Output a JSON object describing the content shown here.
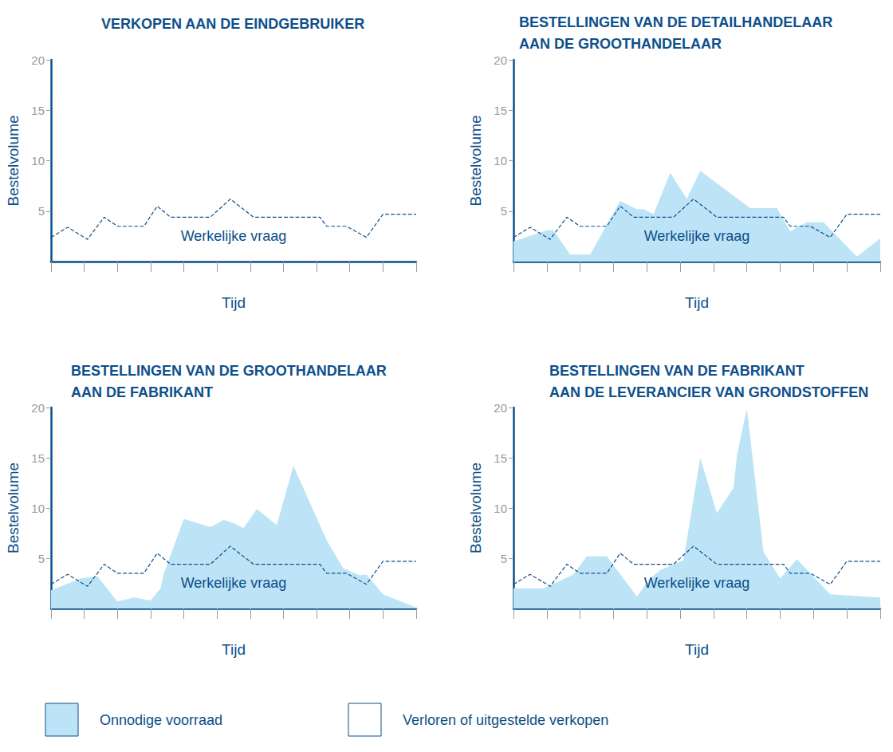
{
  "chart_data": [
    {
      "type": "line",
      "title": "VERKOPEN AAN DE EINDGEBRUIKER",
      "x_label": "Tijd",
      "y_label": "Bestelvolume",
      "xlim": [
        0,
        11
      ],
      "xticks": [
        0,
        1,
        2,
        3,
        4,
        5,
        6,
        7,
        8,
        9,
        10,
        11
      ],
      "ylim": [
        0,
        20
      ],
      "yticks": [
        5,
        10,
        15,
        20
      ],
      "tick_labels": "y",
      "grid": false,
      "series": [
        {
          "name": "Werkelijke vraag",
          "type": "line",
          "line_style": "dashed",
          "color": "#0d4f8b",
          "x": [
            0,
            0.5,
            1.1,
            1.6,
            2.0,
            2.8,
            3.2,
            3.6,
            4.8,
            5.4,
            6.1,
            8.1,
            8.3,
            8.9,
            9.5,
            10.0,
            11
          ],
          "values": [
            2.4,
            3.4,
            2.2,
            4.4,
            3.5,
            3.5,
            5.5,
            4.4,
            4.4,
            6.2,
            4.4,
            4.4,
            3.5,
            3.5,
            2.4,
            4.7,
            4.7
          ]
        }
      ]
    },
    {
      "type": "line",
      "title": "BESTELLINGEN VAN DE DETAILHANDELAAR\nAAN DE GROOTHANDELAAR",
      "x_label": "Tijd",
      "y_label": "Bestelvolume",
      "xlim": [
        0,
        11
      ],
      "xticks": [
        0,
        1,
        2,
        3,
        4,
        5,
        6,
        7,
        8,
        9,
        10,
        11
      ],
      "ylim": [
        0,
        20
      ],
      "yticks": [
        5,
        10,
        15,
        20
      ],
      "tick_labels": "y",
      "grid": false,
      "series": [
        {
          "name": "Onnodige voorraad",
          "type": "area",
          "color": "#bde4f6",
          "x": [
            0,
            1.0,
            1.2,
            1.7,
            2.3,
            3.2,
            3.7,
            3.9,
            4.2,
            4.7,
            5.2,
            5.6,
            7.1,
            7.9,
            8.3,
            8.8,
            9.3,
            10.3,
            11
          ],
          "values": [
            2.0,
            3.1,
            3.1,
            0.7,
            0.7,
            6.0,
            5.2,
            5.2,
            4.7,
            8.8,
            6.2,
            9.0,
            5.3,
            5.3,
            3.0,
            3.9,
            3.9,
            0.5,
            2.3
          ]
        },
        {
          "name": "Werkelijke vraag",
          "type": "line",
          "line_style": "dashed",
          "color": "#0d4f8b",
          "x": [
            0,
            0.5,
            1.1,
            1.6,
            2.0,
            2.8,
            3.2,
            3.6,
            4.8,
            5.4,
            6.1,
            8.1,
            8.3,
            8.9,
            9.5,
            10.0,
            11
          ],
          "values": [
            2.4,
            3.4,
            2.2,
            4.4,
            3.5,
            3.5,
            5.5,
            4.4,
            4.4,
            6.2,
            4.4,
            4.4,
            3.5,
            3.5,
            2.4,
            4.7,
            4.7
          ]
        }
      ]
    },
    {
      "type": "line",
      "title": "BESTELLINGEN VAN DE GROOTHANDELAAR\nAAN DE FABRIKANT",
      "x_label": "Tijd",
      "y_label": "Bestelvolume",
      "xlim": [
        0,
        11
      ],
      "xticks": [
        0,
        1,
        2,
        3,
        4,
        5,
        6,
        7,
        8,
        9,
        10,
        11
      ],
      "ylim": [
        0,
        20
      ],
      "yticks": [
        5,
        10,
        15,
        20
      ],
      "tick_labels": "y",
      "grid": false,
      "series": [
        {
          "name": "Onnodige voorraad",
          "type": "area",
          "color": "#bde4f6",
          "x": [
            0,
            0.9,
            1.4,
            2.0,
            2.5,
            3.0,
            3.3,
            3.4,
            4.0,
            4.8,
            5.2,
            5.5,
            5.8,
            6.2,
            6.8,
            7.3,
            8.3,
            8.8,
            9.3,
            9.5,
            10.0,
            11
          ],
          "values": [
            1.8,
            3.0,
            3.2,
            0.7,
            1.1,
            0.8,
            2.0,
            3.5,
            8.9,
            8.1,
            8.8,
            8.5,
            8.0,
            9.9,
            8.3,
            14.2,
            6.8,
            4.0,
            3.3,
            3.4,
            1.4,
            0.1
          ]
        },
        {
          "name": "Werkelijke vraag",
          "type": "line",
          "line_style": "dashed",
          "color": "#0d4f8b",
          "x": [
            0,
            0.5,
            1.1,
            1.6,
            2.0,
            2.8,
            3.2,
            3.6,
            4.8,
            5.4,
            6.1,
            8.1,
            8.3,
            8.9,
            9.5,
            10.0,
            11
          ],
          "values": [
            2.4,
            3.4,
            2.2,
            4.4,
            3.5,
            3.5,
            5.5,
            4.4,
            4.4,
            6.2,
            4.4,
            4.4,
            3.5,
            3.5,
            2.4,
            4.7,
            4.7
          ]
        }
      ]
    },
    {
      "type": "line",
      "title": "BESTELLINGEN VAN DE FABRIKANT\nAAN DE LEVERANCIER VAN GRONDSTOFFEN",
      "x_label": "Tijd",
      "y_label": "Bestelvolume",
      "xlim": [
        0,
        11
      ],
      "xticks": [
        0,
        1,
        2,
        3,
        4,
        5,
        6,
        7,
        8,
        9,
        10,
        11
      ],
      "ylim": [
        0,
        20
      ],
      "yticks": [
        5,
        10,
        15,
        20
      ],
      "tick_labels": "y",
      "grid": false,
      "series": [
        {
          "name": "Onnodige voorraad",
          "type": "area",
          "color": "#bde4f6",
          "x": [
            0,
            0.9,
            1.3,
            1.8,
            2.2,
            2.8,
            3.7,
            4.1,
            4.4,
            5.1,
            5.6,
            6.1,
            6.6,
            6.7,
            7.0,
            7.5,
            8.0,
            8.5,
            9.5,
            11
          ],
          "values": [
            2.0,
            2.0,
            2.6,
            3.4,
            5.2,
            5.2,
            1.2,
            3.0,
            3.8,
            4.8,
            15.0,
            9.5,
            12.0,
            15.2,
            19.9,
            5.6,
            3.0,
            4.9,
            1.4,
            1.1
          ]
        },
        {
          "name": "Werkelijke vraag",
          "type": "line",
          "line_style": "dashed",
          "color": "#0d4f8b",
          "x": [
            0,
            0.5,
            1.1,
            1.6,
            2.0,
            2.8,
            3.2,
            3.6,
            4.8,
            5.4,
            6.1,
            8.1,
            8.3,
            8.9,
            9.5,
            10.0,
            11
          ],
          "values": [
            2.4,
            3.4,
            2.2,
            4.4,
            3.5,
            3.5,
            5.5,
            4.4,
            4.4,
            6.2,
            4.4,
            4.4,
            3.5,
            3.5,
            2.4,
            4.7,
            4.7
          ]
        }
      ]
    }
  ],
  "figure_legend": [
    {
      "name": "Onnodige voorraad",
      "color": "#bde4f6"
    },
    {
      "name": "Verloren of uitgestelde verkopen",
      "color": "#ffffff"
    }
  ]
}
